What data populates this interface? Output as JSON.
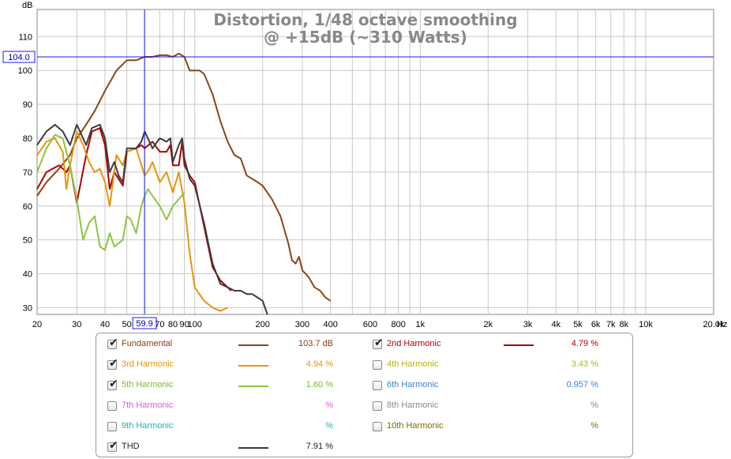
{
  "chart_data": {
    "type": "line",
    "title": "Distortion, 1/48 octave smoothing",
    "subtitle": "@ +15dB (~310 Watts)",
    "ylabel": "dB",
    "xunit": "Hz",
    "xscale": "log",
    "xlim": [
      20,
      20000
    ],
    "ylim": [
      28,
      118
    ],
    "grid": true,
    "y_ticks": [
      "30",
      "40",
      "50",
      "60",
      "70",
      "80",
      "90",
      "100",
      "110"
    ],
    "x_ticks": [
      {
        "v": 20,
        "label": "20"
      },
      {
        "v": 30,
        "label": "30"
      },
      {
        "v": 40,
        "label": "40"
      },
      {
        "v": 50,
        "label": "50"
      },
      {
        "v": 60,
        "label": ""
      },
      {
        "v": 70,
        "label": "70"
      },
      {
        "v": 80,
        "label": "80"
      },
      {
        "v": 90,
        "label": "90"
      },
      {
        "v": 100,
        "label": "100"
      },
      {
        "v": 200,
        "label": "200"
      },
      {
        "v": 300,
        "label": "300"
      },
      {
        "v": 400,
        "label": "400"
      },
      {
        "v": 500,
        "label": ""
      },
      {
        "v": 600,
        "label": "600"
      },
      {
        "v": 700,
        "label": ""
      },
      {
        "v": 800,
        "label": "800"
      },
      {
        "v": 900,
        "label": ""
      },
      {
        "v": 1000,
        "label": "1k"
      },
      {
        "v": 2000,
        "label": "2k"
      },
      {
        "v": 3000,
        "label": "3k"
      },
      {
        "v": 4000,
        "label": "4k"
      },
      {
        "v": 5000,
        "label": "5k"
      },
      {
        "v": 6000,
        "label": "6k"
      },
      {
        "v": 7000,
        "label": "7k"
      },
      {
        "v": 8000,
        "label": "8k"
      },
      {
        "v": 9000,
        "label": ""
      },
      {
        "v": 10000,
        "label": "10k"
      },
      {
        "v": 20000,
        "label": "20.0k"
      }
    ],
    "cursor": {
      "x": 59.9,
      "y": 104.0,
      "x_label": "59.9",
      "y_label": "104.0"
    },
    "series": [
      {
        "name": "Fundamental",
        "color": "#8b4513",
        "x": [
          20,
          22,
          25,
          28,
          30,
          33,
          36,
          40,
          45,
          50,
          55,
          60,
          65,
          70,
          75,
          80,
          85,
          90,
          95,
          100,
          105,
          110,
          120,
          130,
          140,
          150,
          160,
          170,
          180,
          190,
          200,
          220,
          240,
          260,
          270,
          280,
          290,
          300,
          320,
          340,
          360,
          380,
          400
        ],
        "y": [
          63,
          67,
          71,
          75,
          80,
          84,
          88,
          94,
          100,
          103,
          103,
          104,
          104,
          104.5,
          104.5,
          104,
          105,
          104,
          100,
          100,
          100,
          99,
          93,
          85,
          79,
          75,
          74,
          69,
          68,
          67,
          66,
          62,
          57,
          49,
          44,
          43,
          45,
          41,
          39,
          36,
          35,
          33,
          32
        ]
      },
      {
        "name": "2nd Harmonic",
        "color": "#b00000",
        "x": [
          20,
          22,
          25,
          27,
          28,
          30,
          33,
          35,
          38,
          40,
          42,
          44,
          46,
          48,
          50,
          55,
          58,
          60,
          65,
          70,
          75,
          78,
          80,
          85,
          88,
          90,
          95,
          100,
          110,
          120,
          130,
          140,
          145
        ],
        "y": [
          65,
          70,
          72,
          70,
          72,
          61,
          75,
          82,
          83,
          78,
          65,
          70,
          68,
          66,
          76,
          77,
          78,
          77,
          79,
          76,
          76,
          78,
          72,
          72,
          79,
          72,
          69,
          67,
          54,
          42,
          38,
          36,
          35
        ]
      },
      {
        "name": "3rd Harmonic",
        "color": "#e8940c",
        "x": [
          20,
          22,
          24,
          26,
          27,
          28,
          30,
          32,
          34,
          36,
          38,
          40,
          42,
          45,
          48,
          50,
          55,
          60,
          63,
          65,
          70,
          75,
          80,
          85,
          90,
          95,
          100,
          110,
          120,
          130,
          140
        ],
        "y": [
          75,
          79,
          80,
          76,
          65,
          72,
          82,
          78,
          73,
          70,
          71,
          67,
          60,
          75,
          72,
          76,
          77,
          69,
          71,
          73,
          67,
          70,
          64,
          70,
          61,
          46,
          36,
          32,
          30,
          29,
          30
        ]
      },
      {
        "name": "5th Harmonic",
        "color": "#8cc63f",
        "x": [
          20,
          22,
          24,
          26,
          28,
          30,
          32,
          34,
          36,
          38,
          40,
          42,
          44,
          46,
          48,
          50,
          52,
          55,
          58,
          60,
          62,
          65,
          70,
          75,
          80,
          85,
          90
        ],
        "y": [
          70,
          77,
          81,
          80,
          72,
          62,
          50,
          55,
          57,
          48,
          47,
          52,
          48,
          49,
          50,
          57,
          56,
          52,
          60,
          63,
          65,
          63,
          60,
          56,
          60,
          62,
          64
        ]
      },
      {
        "name": "THD",
        "color": "#3b3b3b",
        "x": [
          20,
          22,
          24,
          26,
          28,
          30,
          33,
          35,
          38,
          40,
          42,
          44,
          46,
          48,
          50,
          55,
          58,
          60,
          65,
          70,
          75,
          78,
          80,
          85,
          88,
          90,
          95,
          100,
          110,
          120,
          130,
          140,
          150,
          160,
          170,
          180,
          190,
          200,
          210
        ],
        "y": [
          78,
          82,
          84,
          82,
          78,
          84,
          78,
          83,
          84,
          80,
          70,
          73,
          69,
          67,
          77,
          77,
          79,
          82,
          77,
          80,
          79,
          80,
          73,
          78,
          80,
          74,
          68,
          66,
          55,
          43,
          37,
          36,
          35,
          35,
          34,
          34,
          33,
          32,
          28
        ]
      }
    ]
  },
  "legend": {
    "items": [
      {
        "label": "Fundamental",
        "checked": true,
        "value": "103.7 dB",
        "color": "#8b3c0c",
        "line": "#8b4513"
      },
      {
        "label": "2nd Harmonic",
        "checked": true,
        "value": "4.79 %",
        "color": "#b00000",
        "line": "#b00000"
      },
      {
        "label": "3rd Harmonic",
        "checked": true,
        "value": "4.94 %",
        "color": "#e8940c",
        "line": "#e8940c"
      },
      {
        "label": "4th Harmonic",
        "checked": false,
        "value": "3.43 %",
        "color": "#b5b515",
        "line": ""
      },
      {
        "label": "5th Harmonic",
        "checked": true,
        "value": "1.60 %",
        "color": "#7cb82f",
        "line": "#8cc63f"
      },
      {
        "label": "6th Harmonic",
        "checked": false,
        "value": "0.957 %",
        "color": "#3c7fd6",
        "line": ""
      },
      {
        "label": "7th Harmonic",
        "checked": false,
        "value": "%",
        "color": "#e05adf",
        "line": ""
      },
      {
        "label": "8th Harmonic",
        "checked": false,
        "value": "%",
        "color": "#8a8a8a",
        "line": ""
      },
      {
        "label": "9th Harmonic",
        "checked": false,
        "value": "%",
        "color": "#1fb3b3",
        "line": ""
      },
      {
        "label": "10th Harmonic",
        "checked": false,
        "value": "%",
        "color": "#7a6a00",
        "line": ""
      },
      {
        "label": "THD",
        "checked": true,
        "value": "7.91 %",
        "color": "#222222",
        "line": "#3b3b3b"
      }
    ]
  }
}
